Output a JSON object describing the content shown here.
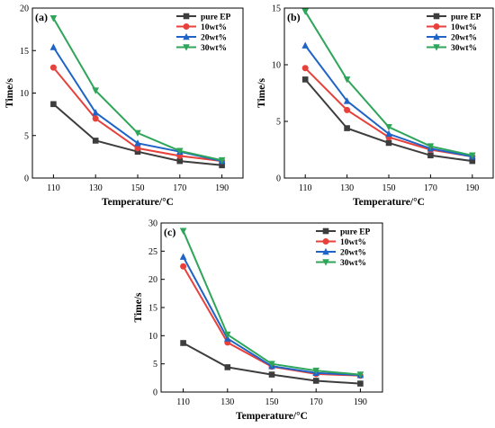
{
  "chart_data": [
    {
      "type": "line",
      "panel_label": "(a)",
      "xlabel": "Temperature/°C",
      "ylabel": "Time/s",
      "x": [
        110,
        130,
        150,
        170,
        190
      ],
      "ylim": [
        0,
        20
      ],
      "yticks": [
        0,
        5,
        10,
        15,
        20
      ],
      "grid": false,
      "legend_position": "top-right",
      "series": [
        {
          "name": "pure EP",
          "color": "#3d3d3d",
          "marker": "square",
          "values": [
            8.7,
            4.4,
            3.1,
            2.0,
            1.5
          ]
        },
        {
          "name": "10wt%",
          "color": "#e8413c",
          "marker": "circle",
          "values": [
            13.0,
            7.0,
            3.5,
            2.6,
            2.0
          ]
        },
        {
          "name": "20wt%",
          "color": "#1f63c7",
          "marker": "triangle-up",
          "values": [
            15.4,
            7.7,
            4.1,
            3.1,
            2.0
          ]
        },
        {
          "name": "30wt%",
          "color": "#2fa55a",
          "marker": "triangle-down",
          "values": [
            18.8,
            10.3,
            5.3,
            3.2,
            2.1
          ]
        }
      ]
    },
    {
      "type": "line",
      "panel_label": "(b)",
      "xlabel": "Temperature/°C",
      "ylabel": "Time/s",
      "x": [
        110,
        130,
        150,
        170,
        190
      ],
      "ylim": [
        0,
        15
      ],
      "yticks": [
        0,
        5,
        10,
        15
      ],
      "grid": false,
      "legend_position": "top-right",
      "series": [
        {
          "name": "pure EP",
          "color": "#3d3d3d",
          "marker": "square",
          "values": [
            8.7,
            4.4,
            3.1,
            2.0,
            1.5
          ]
        },
        {
          "name": "10wt%",
          "color": "#e8413c",
          "marker": "circle",
          "values": [
            9.7,
            6.0,
            3.6,
            2.5,
            1.9
          ]
        },
        {
          "name": "20wt%",
          "color": "#1f63c7",
          "marker": "triangle-up",
          "values": [
            11.7,
            6.8,
            3.9,
            2.6,
            1.9
          ]
        },
        {
          "name": "30wt%",
          "color": "#2fa55a",
          "marker": "triangle-down",
          "values": [
            14.7,
            8.7,
            4.5,
            2.8,
            2.0
          ]
        }
      ]
    },
    {
      "type": "line",
      "panel_label": "(c)",
      "xlabel": "Temperature/°C",
      "ylabel": "Time/s",
      "x": [
        110,
        130,
        150,
        170,
        190
      ],
      "ylim": [
        0,
        30
      ],
      "yticks": [
        0,
        5,
        10,
        15,
        20,
        25,
        30
      ],
      "grid": false,
      "legend_position": "top-right",
      "series": [
        {
          "name": "pure EP",
          "color": "#3d3d3d",
          "marker": "square",
          "values": [
            8.7,
            4.4,
            3.1,
            2.0,
            1.5
          ]
        },
        {
          "name": "10wt%",
          "color": "#e8413c",
          "marker": "circle",
          "values": [
            22.3,
            8.8,
            4.5,
            3.2,
            2.9
          ]
        },
        {
          "name": "20wt%",
          "color": "#1f63c7",
          "marker": "triangle-up",
          "values": [
            24.0,
            9.5,
            4.6,
            3.4,
            3.0
          ]
        },
        {
          "name": "30wt%",
          "color": "#2fa55a",
          "marker": "triangle-down",
          "values": [
            28.6,
            10.2,
            5.0,
            3.8,
            3.1
          ]
        }
      ]
    }
  ]
}
